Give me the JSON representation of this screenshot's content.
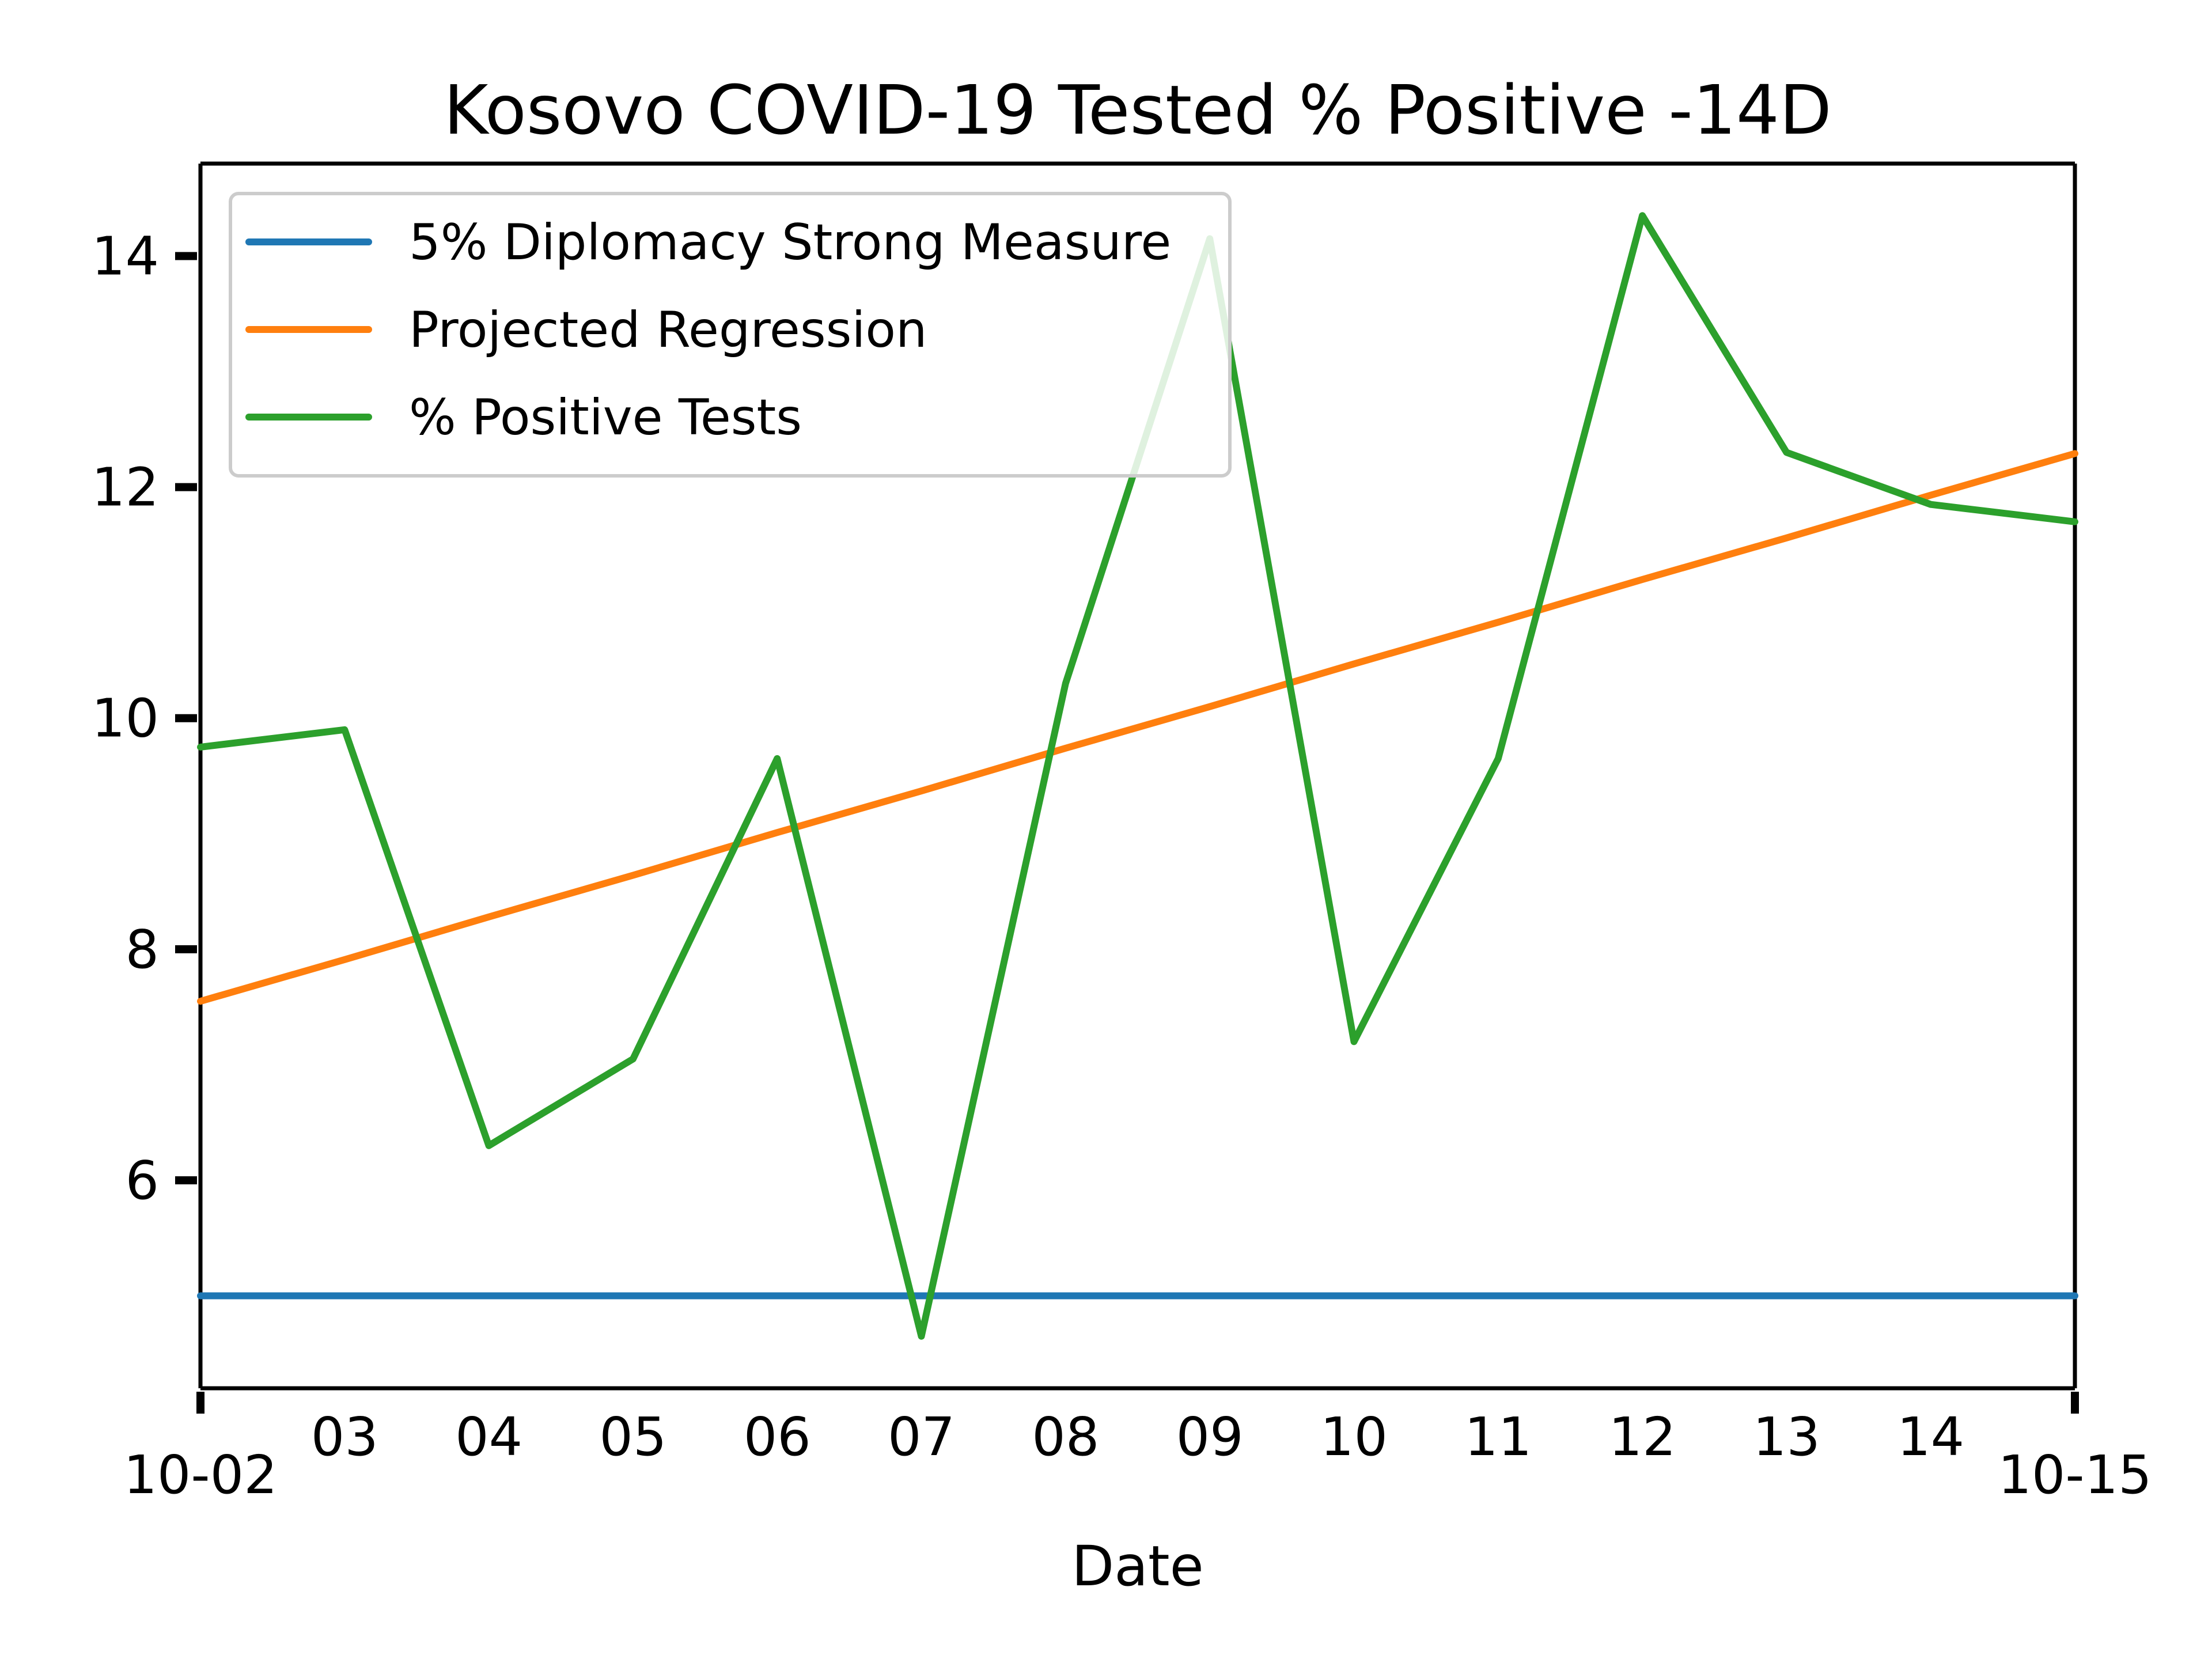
{
  "chart_data": {
    "type": "line",
    "title": "Kosovo COVID-19 Tested % Positive -14D",
    "xlabel": "Date",
    "ylabel": "",
    "x": [
      "10-02",
      "03",
      "04",
      "05",
      "06",
      "07",
      "08",
      "09",
      "10",
      "11",
      "12",
      "13",
      "14",
      "10-15"
    ],
    "x_tick_labels": [
      "10-02",
      "03",
      "04",
      "05",
      "06",
      "07",
      "08",
      "09",
      "10",
      "11",
      "12",
      "13",
      "14",
      "10-15"
    ],
    "y_ticks": [
      6,
      8,
      10,
      12,
      14
    ],
    "ylim": [
      4.2,
      14.8
    ],
    "grid": false,
    "legend_placement": "upper-left",
    "series": [
      {
        "name": "5% Diplomacy Strong Measure",
        "color": "#1f77b4",
        "values": [
          5,
          5,
          5,
          5,
          5,
          5,
          5,
          5,
          5,
          5,
          5,
          5,
          5,
          5
        ]
      },
      {
        "name": "Projected Regression",
        "color": "#ff7f0e",
        "values": [
          7.55,
          7.91,
          8.28,
          8.64,
          9.01,
          9.37,
          9.74,
          10.1,
          10.47,
          10.83,
          11.2,
          11.56,
          11.93,
          12.29
        ]
      },
      {
        "name": "% Positive Tests",
        "color": "#2ca02c",
        "values": [
          9.75,
          9.9,
          6.3,
          7.05,
          9.65,
          4.65,
          10.3,
          14.15,
          7.2,
          9.65,
          14.35,
          12.3,
          11.85,
          11.7
        ]
      }
    ]
  }
}
